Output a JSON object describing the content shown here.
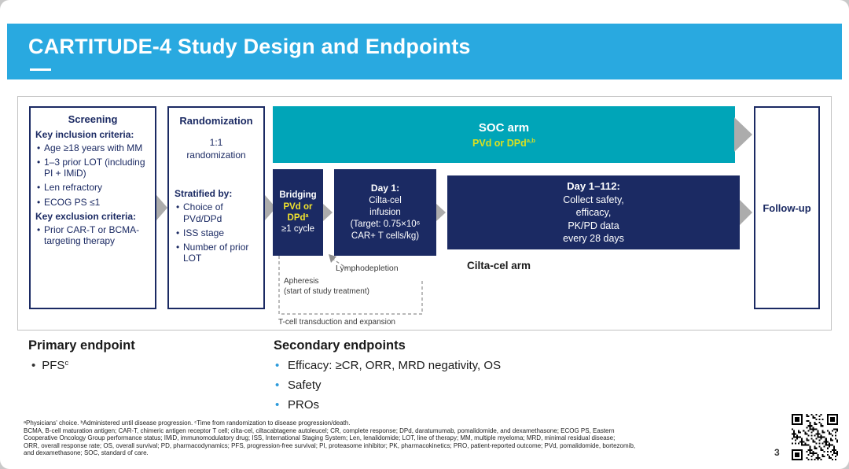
{
  "colors": {
    "header_blue": "#29A9E0",
    "navy": "#1B2A63",
    "teal": "#00A5B8",
    "yellow_soc": "#D9E021",
    "yellow_bridging": "#F2E32E",
    "arrow_gray": "#ACACAC"
  },
  "header": {
    "title": "CARTITUDE-4 Study Design and Endpoints"
  },
  "diagram": {
    "screening": {
      "title": "Screening",
      "inclusion_heading": "Key inclusion criteria:",
      "inclusion_items": [
        "Age ≥18 years with MM",
        "1–3 prior LOT (including PI + IMiD)",
        "Len refractory",
        "ECOG PS ≤1"
      ],
      "exclusion_heading": "Key exclusion criteria:",
      "exclusion_items": [
        "Prior CAR-T or BCMA-targeting therapy"
      ]
    },
    "randomization": {
      "title": "Randomization",
      "subtitle": "1:1\nrandomization",
      "stratified_heading": "Stratified by:",
      "stratified_items": [
        "Choice of PVd/DPd",
        "ISS stage",
        "Number of prior LOT"
      ]
    },
    "soc_arm": {
      "title": "SOC arm",
      "drug": "PVd or DPd",
      "drug_sup": "a,b"
    },
    "bridging": {
      "title": "Bridging",
      "drug": "PVd or DPd",
      "drug_sup": "a",
      "cycles": "≥1 cycle"
    },
    "day1": {
      "title": "Day 1:",
      "body": "Cilta-cel\ninfusion\n(Target: 0.75×10⁶\nCAR+ T cells/kg)"
    },
    "day112": {
      "title": "Day 1–112:",
      "body": "Collect safety,\nefficacy,\nPK/PD data\nevery 28 days"
    },
    "cilta_label": "Cilta-cel arm",
    "followup": "Follow-up",
    "annotations": {
      "lymphodepletion": "Lymphodepletion",
      "apheresis": "Apheresis\n(start of study treatment)",
      "tcell": "T-cell transduction and expansion"
    }
  },
  "endpoints": {
    "primary_heading": "Primary endpoint",
    "primary_item": "PFS",
    "primary_item_sup": "c",
    "secondary_heading": "Secondary endpoints",
    "secondary_items": [
      "Efficacy: ≥CR, ORR, MRD negativity, OS",
      "Safety",
      "PROs"
    ]
  },
  "footnotes": {
    "lines": [
      "ᵃPhysicians' choice. ᵇAdministered until disease progression. ᶜTime from randomization to disease progression/death.",
      "BCMA, B-cell maturation antigen; CAR-T, chimeric antigen receptor T cell; cilta-cel, ciltacabtagene autoleucel; CR, complete response; DPd, daratumumab, pomalidomide, and dexamethasone; ECOG PS, Eastern",
      "Cooperative Oncology Group performance status; IMiD, immunomodulatory drug; ISS, International Staging System; Len, lenalidomide; LOT, line of therapy; MM, multiple myeloma; MRD, minimal residual disease;",
      "ORR, overall response rate; OS, overall survival; PD, pharmacodynamics; PFS, progression-free survival; PI, proteasome inhibitor; PK, pharmacokinetics; PRO, patient-reported outcome; PVd, pomalidomide, bortezomib,",
      "and dexamethasone; SOC, standard of care."
    ]
  },
  "page_number": "3"
}
